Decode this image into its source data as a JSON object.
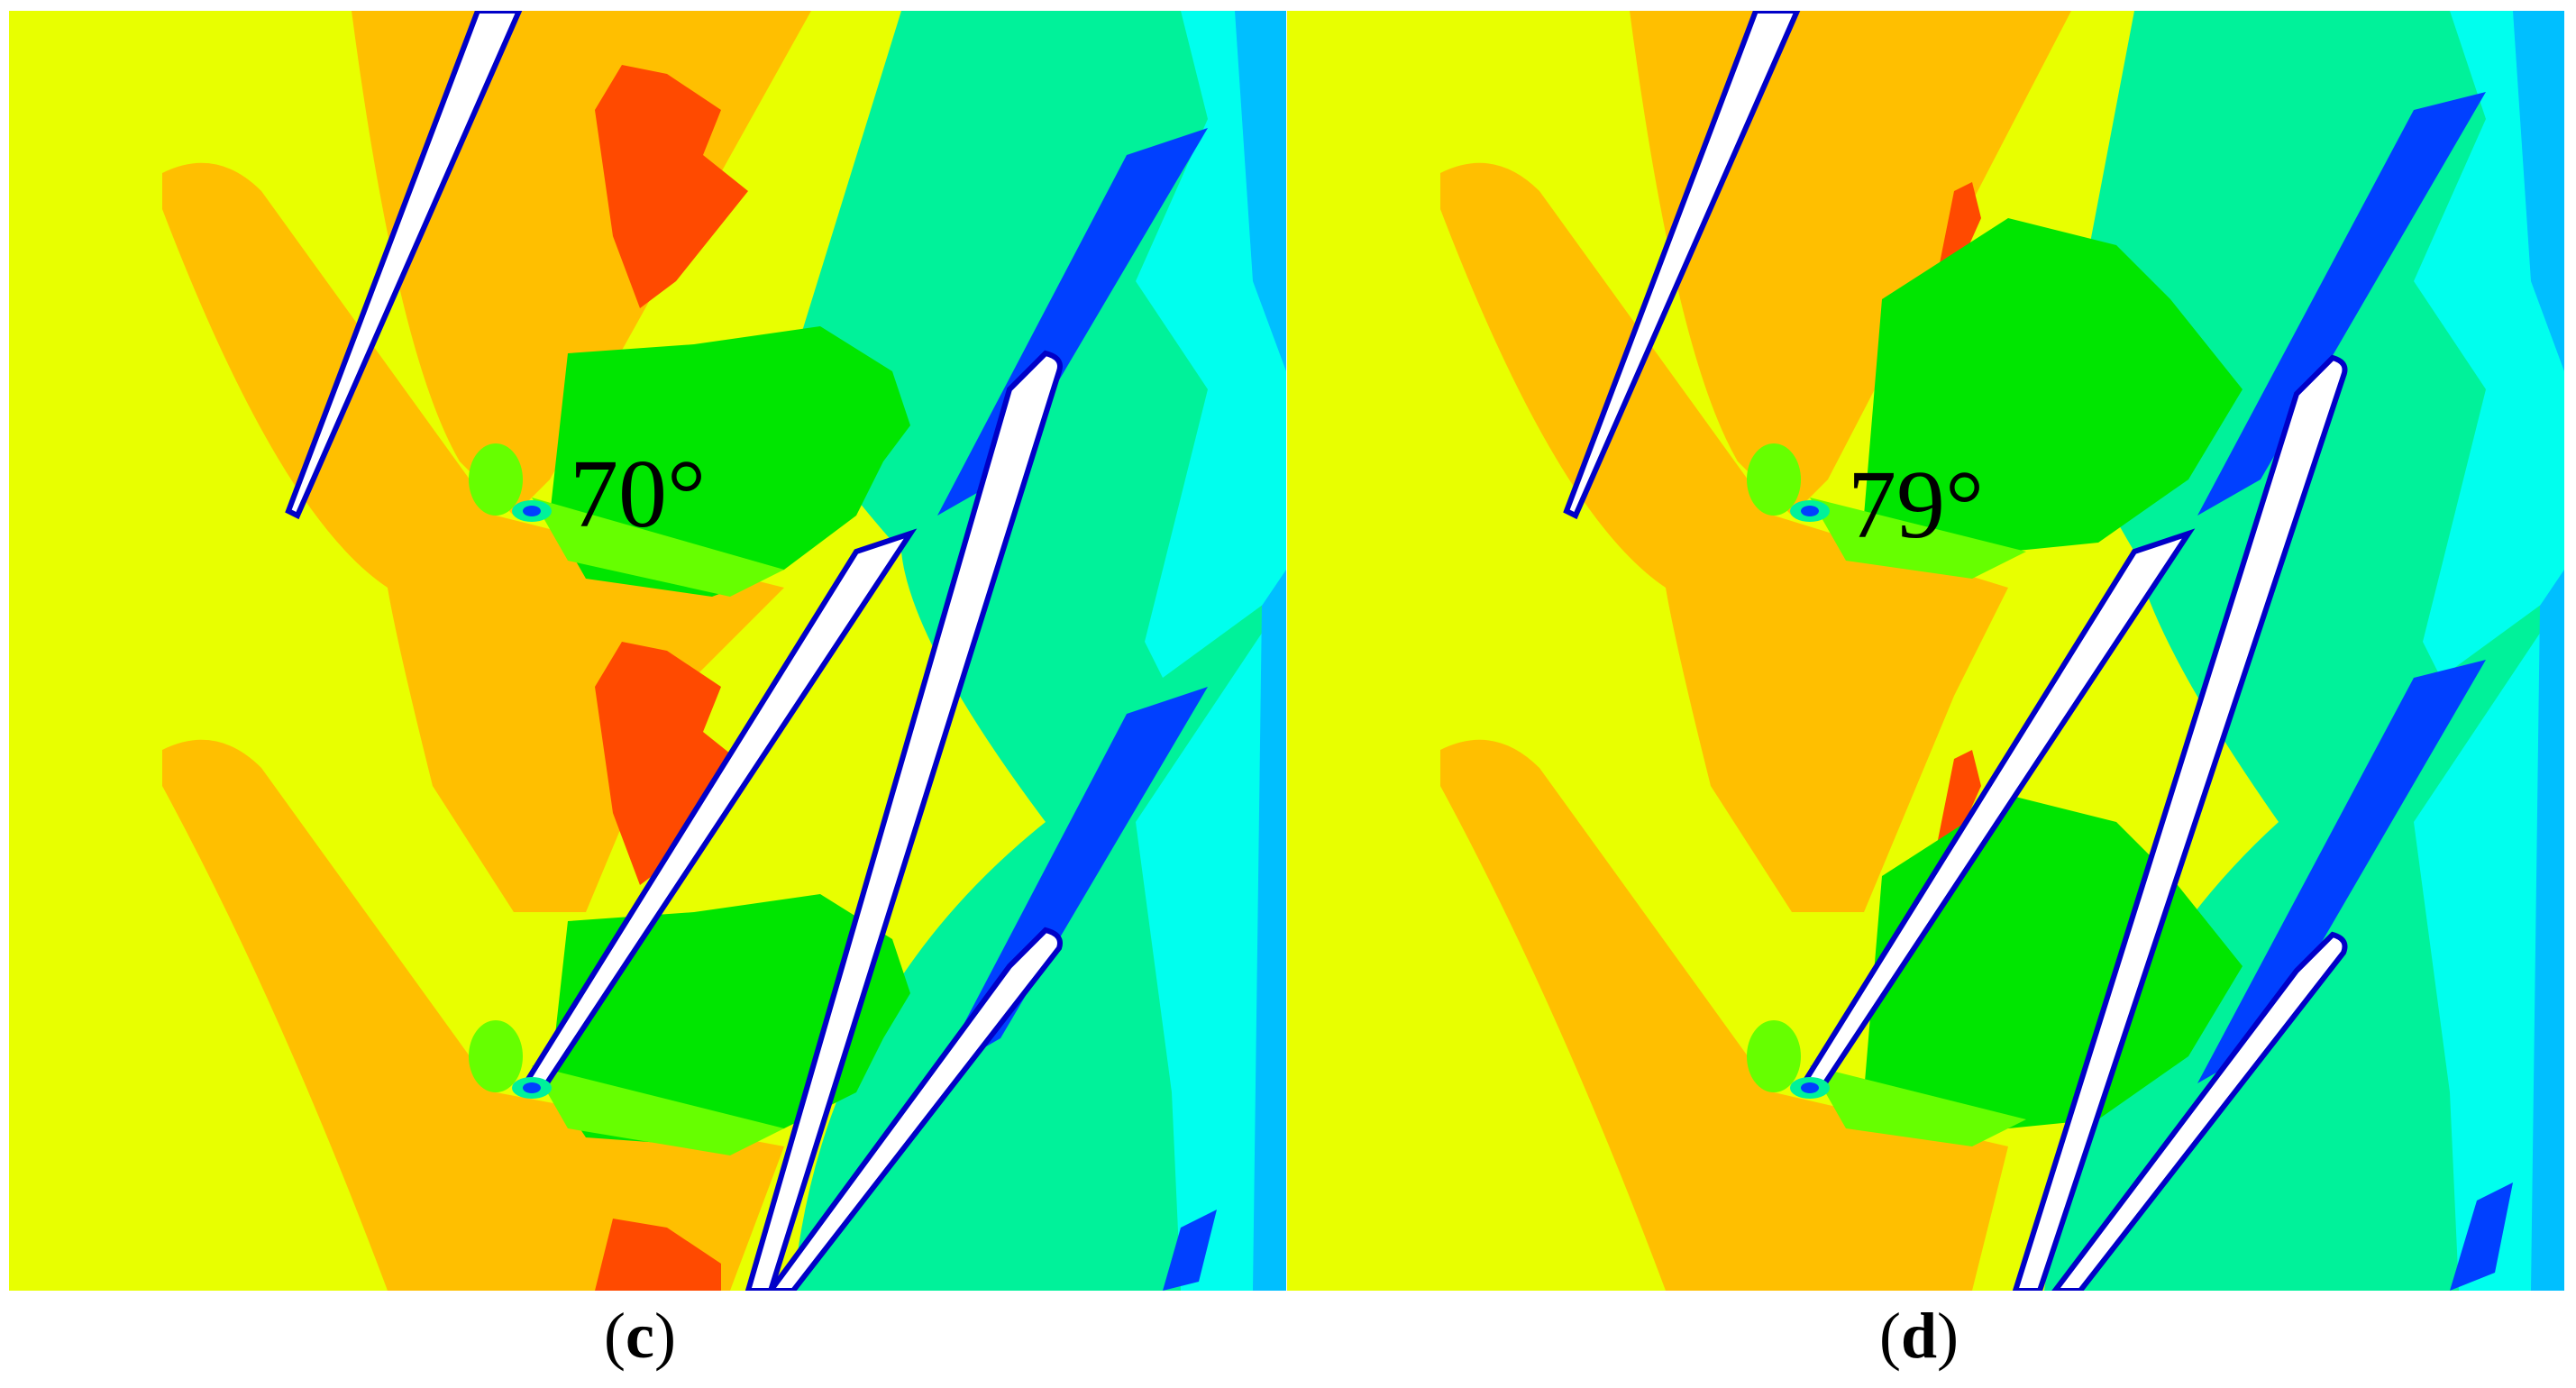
{
  "panels": [
    {
      "id": "c",
      "caption_open": "(",
      "caption_letter": "c",
      "caption_close": ")",
      "angle_label": "70°"
    },
    {
      "id": "d",
      "caption_open": "(",
      "caption_letter": "d",
      "caption_close": ")",
      "angle_label": "79°"
    }
  ],
  "colors": {
    "yellow": "#e8ff00",
    "orange": "#ffbf00",
    "red": "#ff4a00",
    "green": "#00e600",
    "light_green": "#66ff00",
    "teal": "#00f29a",
    "cyan": "#00ffee",
    "light_blue": "#00bfff",
    "blue": "#0040ff",
    "dark_blue": "#0000c8",
    "blade": "#ffffff"
  }
}
